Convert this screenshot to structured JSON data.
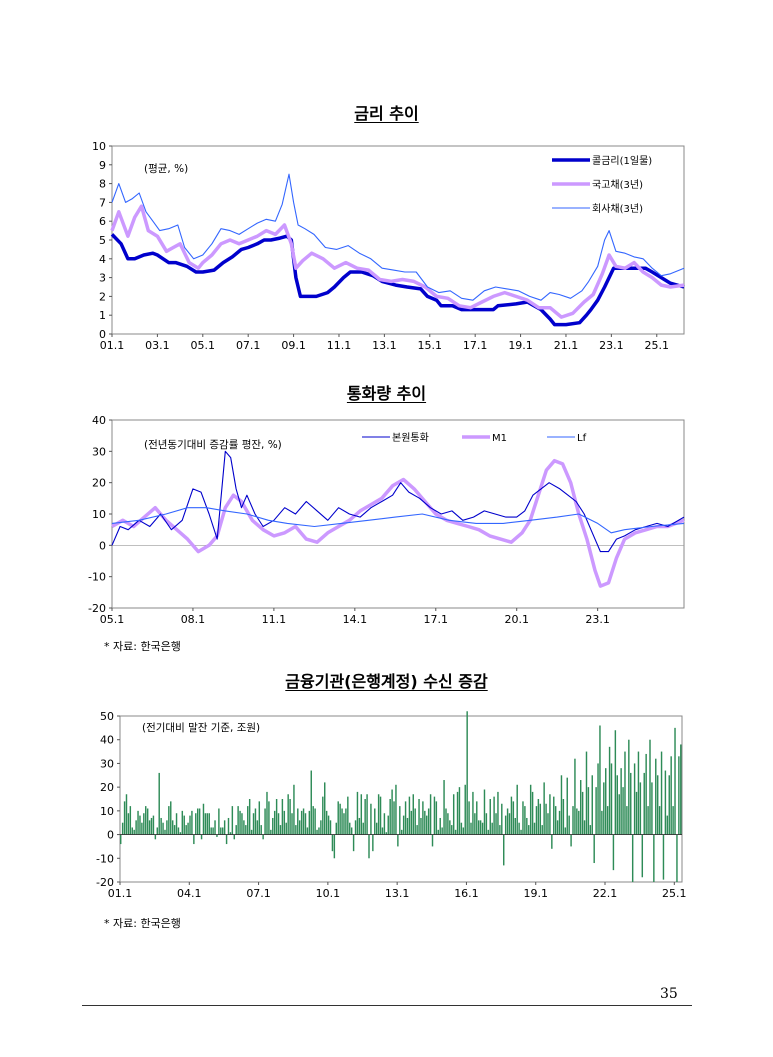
{
  "page_number": "35",
  "sections": {
    "rates": {
      "title": "금리 추이"
    },
    "money": {
      "title": "통화량 추이",
      "source": "* 자료: 한국은행"
    },
    "deposits": {
      "title": "금융기관(은행계정) 수신 증감",
      "source": "* 자료: 한국은행"
    }
  },
  "colors": {
    "navy": "#0000cc",
    "violet": "#cc99ff",
    "blue": "#3366ff",
    "green": "#2e8b57"
  },
  "chart_data": [
    {
      "id": "rates",
      "type": "line",
      "unit_note": "(평균, %)",
      "xlim": [
        2001.0,
        2026.2
      ],
      "ylim": [
        0,
        10
      ],
      "yticks": [
        0,
        1,
        2,
        3,
        4,
        5,
        6,
        7,
        8,
        9,
        10
      ],
      "xtick_labels": [
        "01.1",
        "03.1",
        "05.1",
        "07.1",
        "09.1",
        "11.1",
        "13.1",
        "15.1",
        "17.1",
        "19.1",
        "21.1",
        "23.1",
        "25.1"
      ],
      "legend_position": "top-right",
      "series": [
        {
          "name": "콜금리(1일물)",
          "color": "#0000cc",
          "width": 3.5,
          "x": [
            2001.0,
            2001.4,
            2001.7,
            2002.0,
            2002.4,
            2002.8,
            2003.0,
            2003.5,
            2003.8,
            2004.3,
            2004.7,
            2005.0,
            2005.5,
            2005.9,
            2006.3,
            2006.7,
            2007.0,
            2007.4,
            2007.7,
            2008.0,
            2008.4,
            2008.7,
            2008.9,
            2009.1,
            2009.3,
            2010.0,
            2010.5,
            2010.8,
            2011.2,
            2011.5,
            2012.0,
            2012.5,
            2012.9,
            2013.5,
            2014.0,
            2014.6,
            2014.9,
            2015.3,
            2015.5,
            2016.0,
            2016.4,
            2017.0,
            2017.8,
            2018.0,
            2018.8,
            2019.3,
            2019.6,
            2019.9,
            2020.3,
            2020.5,
            2021.0,
            2021.6,
            2021.9,
            2022.1,
            2022.4,
            2022.7,
            2022.9,
            2023.1,
            2023.5,
            2024.0,
            2024.5,
            2024.8,
            2025.2,
            2025.6,
            2026.2
          ],
          "y": [
            5.3,
            4.8,
            4.0,
            4.0,
            4.2,
            4.3,
            4.2,
            3.8,
            3.8,
            3.6,
            3.3,
            3.3,
            3.4,
            3.8,
            4.1,
            4.5,
            4.6,
            4.8,
            5.0,
            5.0,
            5.1,
            5.2,
            5.0,
            3.0,
            2.0,
            2.0,
            2.2,
            2.5,
            3.0,
            3.3,
            3.3,
            3.1,
            2.8,
            2.6,
            2.5,
            2.4,
            2.0,
            1.8,
            1.5,
            1.5,
            1.3,
            1.3,
            1.3,
            1.5,
            1.6,
            1.7,
            1.5,
            1.3,
            0.8,
            0.5,
            0.5,
            0.6,
            1.0,
            1.3,
            1.8,
            2.5,
            3.0,
            3.5,
            3.5,
            3.5,
            3.5,
            3.3,
            3.0,
            2.7,
            2.5
          ]
        },
        {
          "name": "국고채(3년)",
          "color": "#cc99ff",
          "width": 3.5,
          "x": [
            2001.0,
            2001.3,
            2001.7,
            2002.0,
            2002.3,
            2002.6,
            2003.0,
            2003.4,
            2003.7,
            2004.0,
            2004.4,
            2004.8,
            2005.0,
            2005.4,
            2005.8,
            2006.2,
            2006.6,
            2007.0,
            2007.4,
            2007.8,
            2008.2,
            2008.6,
            2008.9,
            2009.1,
            2009.4,
            2009.8,
            2010.3,
            2010.8,
            2011.3,
            2011.8,
            2012.3,
            2012.8,
            2013.3,
            2013.8,
            2014.3,
            2014.8,
            2015.3,
            2015.8,
            2016.3,
            2016.8,
            2017.3,
            2017.8,
            2018.3,
            2018.8,
            2019.3,
            2019.8,
            2020.3,
            2020.8,
            2021.3,
            2021.8,
            2022.2,
            2022.6,
            2022.9,
            2023.2,
            2023.6,
            2024.0,
            2024.4,
            2024.8,
            2025.2,
            2025.6,
            2026.2
          ],
          "y": [
            5.5,
            6.5,
            5.2,
            6.2,
            6.8,
            5.5,
            5.2,
            4.4,
            4.6,
            4.8,
            3.8,
            3.5,
            3.8,
            4.2,
            4.8,
            5.0,
            4.8,
            5.0,
            5.2,
            5.5,
            5.3,
            5.8,
            4.8,
            3.5,
            3.9,
            4.3,
            4.0,
            3.5,
            3.8,
            3.5,
            3.4,
            2.9,
            2.8,
            2.9,
            2.8,
            2.5,
            2.0,
            1.9,
            1.5,
            1.4,
            1.7,
            2.0,
            2.2,
            2.0,
            1.8,
            1.4,
            1.4,
            0.9,
            1.1,
            1.7,
            2.1,
            3.2,
            4.2,
            3.6,
            3.5,
            3.8,
            3.3,
            3.0,
            2.6,
            2.5,
            2.6
          ]
        },
        {
          "name": "회사채(3년)",
          "color": "#3366ff",
          "width": 1.1,
          "x": [
            2001.0,
            2001.3,
            2001.6,
            2001.9,
            2002.2,
            2002.5,
            2002.8,
            2003.1,
            2003.5,
            2003.9,
            2004.2,
            2004.6,
            2005.0,
            2005.4,
            2005.8,
            2006.2,
            2006.6,
            2007.0,
            2007.4,
            2007.8,
            2008.2,
            2008.5,
            2008.8,
            2009.0,
            2009.2,
            2009.5,
            2009.9,
            2010.4,
            2010.9,
            2011.4,
            2011.9,
            2012.4,
            2012.9,
            2013.4,
            2013.9,
            2014.4,
            2014.9,
            2015.4,
            2015.9,
            2016.4,
            2016.9,
            2017.4,
            2017.9,
            2018.4,
            2018.9,
            2019.4,
            2019.9,
            2020.3,
            2020.7,
            2021.2,
            2021.7,
            2022.0,
            2022.4,
            2022.7,
            2022.9,
            2023.2,
            2023.6,
            2024.0,
            2024.4,
            2024.8,
            2025.2,
            2025.6,
            2026.2
          ],
          "y": [
            7.0,
            8.0,
            7.0,
            7.2,
            7.5,
            6.5,
            6.0,
            5.5,
            5.6,
            5.8,
            4.6,
            4.0,
            4.2,
            4.8,
            5.6,
            5.5,
            5.3,
            5.6,
            5.9,
            6.1,
            6.0,
            6.9,
            8.5,
            7.0,
            5.8,
            5.6,
            5.3,
            4.6,
            4.5,
            4.7,
            4.3,
            4.0,
            3.5,
            3.4,
            3.3,
            3.3,
            2.5,
            2.2,
            2.3,
            1.9,
            1.8,
            2.3,
            2.5,
            2.4,
            2.3,
            2.0,
            1.8,
            2.2,
            2.1,
            1.9,
            2.3,
            2.8,
            3.6,
            5.0,
            5.5,
            4.4,
            4.3,
            4.1,
            4.0,
            3.5,
            3.1,
            3.2,
            3.5
          ]
        }
      ]
    },
    {
      "id": "money",
      "type": "line",
      "unit_note": "(전년동기대비 증감률 평잔, %)",
      "xlim": [
        2005.0,
        2026.2
      ],
      "ylim": [
        -20,
        40
      ],
      "yticks": [
        -20,
        -10,
        0,
        10,
        20,
        30,
        40
      ],
      "xtick_labels": [
        "05.1",
        "08.1",
        "11.1",
        "14.1",
        "17.1",
        "20.1",
        "23.1"
      ],
      "legend_position": "top",
      "series": [
        {
          "name": "본원통화",
          "color": "#0000cc",
          "width": 1.1,
          "x": [
            2005.0,
            2005.3,
            2005.6,
            2006.0,
            2006.4,
            2006.8,
            2007.2,
            2007.6,
            2008.0,
            2008.3,
            2008.6,
            2008.9,
            2009.2,
            2009.4,
            2009.6,
            2009.8,
            2010.0,
            2010.3,
            2010.6,
            2011.0,
            2011.4,
            2011.8,
            2012.2,
            2012.6,
            2013.0,
            2013.4,
            2013.8,
            2014.2,
            2014.6,
            2015.0,
            2015.4,
            2015.7,
            2016.0,
            2016.4,
            2016.8,
            2017.2,
            2017.6,
            2018.0,
            2018.4,
            2018.8,
            2019.2,
            2019.6,
            2020.0,
            2020.3,
            2020.6,
            2020.9,
            2021.2,
            2021.6,
            2021.9,
            2022.2,
            2022.5,
            2022.8,
            2023.1,
            2023.4,
            2023.7,
            2024.0,
            2024.4,
            2024.8,
            2025.2,
            2025.6,
            2026.2
          ],
          "y": [
            0,
            6,
            5,
            8,
            6,
            10,
            5,
            8,
            18,
            17,
            10,
            2,
            30,
            28,
            18,
            12,
            16,
            10,
            6,
            8,
            12,
            10,
            14,
            11,
            8,
            12,
            10,
            9,
            12,
            14,
            16,
            20,
            17,
            15,
            12,
            10,
            11,
            8,
            9,
            11,
            10,
            9,
            9,
            11,
            16,
            18,
            20,
            18,
            16,
            14,
            10,
            4,
            -2,
            -2,
            2,
            3,
            5,
            6,
            7,
            6,
            9
          ]
        },
        {
          "name": "M1",
          "color": "#cc99ff",
          "width": 3.5,
          "x": [
            2005.0,
            2005.4,
            2005.8,
            2006.2,
            2006.6,
            2007.0,
            2007.4,
            2007.8,
            2008.2,
            2008.6,
            2008.9,
            2009.2,
            2009.5,
            2009.8,
            2010.2,
            2010.6,
            2011.0,
            2011.4,
            2011.8,
            2012.2,
            2012.6,
            2013.0,
            2013.4,
            2013.8,
            2014.2,
            2014.6,
            2015.0,
            2015.4,
            2015.8,
            2016.2,
            2016.6,
            2017.0,
            2017.4,
            2017.8,
            2018.2,
            2018.6,
            2019.0,
            2019.4,
            2019.8,
            2020.2,
            2020.5,
            2020.8,
            2021.1,
            2021.4,
            2021.7,
            2022.0,
            2022.3,
            2022.6,
            2022.9,
            2023.1,
            2023.4,
            2023.7,
            2024.0,
            2024.4,
            2024.8,
            2025.2,
            2025.6,
            2026.2
          ],
          "y": [
            6,
            8,
            6,
            9,
            12,
            8,
            5,
            2,
            -2,
            0,
            3,
            12,
            16,
            14,
            8,
            5,
            3,
            4,
            6,
            2,
            1,
            4,
            6,
            8,
            11,
            13,
            15,
            19,
            21,
            18,
            14,
            10,
            8,
            7,
            6,
            5,
            3,
            2,
            1,
            4,
            8,
            16,
            24,
            27,
            26,
            20,
            10,
            2,
            -8,
            -13,
            -12,
            -4,
            2,
            4,
            5,
            6,
            6,
            8
          ]
        },
        {
          "name": "Lf",
          "color": "#3366ff",
          "width": 1.1,
          "x": [
            2005.0,
            2006.0,
            2007.0,
            2007.8,
            2008.5,
            2009.2,
            2010.0,
            2010.8,
            2011.5,
            2012.5,
            2013.5,
            2014.5,
            2015.5,
            2016.5,
            2017.5,
            2018.5,
            2019.5,
            2020.5,
            2021.5,
            2022.3,
            2023.0,
            2023.5,
            2024.0,
            2025.0,
            2026.2
          ],
          "y": [
            7,
            8,
            10,
            12,
            12,
            11,
            10,
            8,
            7,
            6,
            7,
            8,
            9,
            10,
            8,
            7,
            7,
            8,
            9,
            10,
            7,
            4,
            5,
            6,
            7
          ]
        }
      ]
    },
    {
      "id": "deposits",
      "type": "bar",
      "unit_note": "(전기대비 말잔 기준, 조원)",
      "ylim": [
        -20,
        50
      ],
      "yticks": [
        -20,
        -10,
        0,
        10,
        20,
        30,
        40,
        50
      ],
      "xtick_labels": [
        "01.1",
        "04.1",
        "07.1",
        "10.1",
        "13.1",
        "16.1",
        "19.1",
        "22.1",
        "25.1"
      ],
      "start_month": "01.1",
      "color": "#2e8b57",
      "values": [
        -4,
        5,
        14,
        17,
        9,
        12,
        3,
        2,
        6,
        10,
        8,
        5,
        9,
        12,
        11,
        6,
        7,
        8,
        -2,
        3,
        26,
        7,
        5,
        2,
        6,
        12,
        14,
        6,
        4,
        9,
        3,
        1,
        10,
        8,
        4,
        5,
        8,
        10,
        -4,
        9,
        11,
        11,
        -2,
        13,
        9,
        9,
        9,
        3,
        3,
        6,
        -1,
        11,
        3,
        3,
        6,
        -4,
        7,
        1,
        12,
        -2,
        4,
        12,
        10,
        9,
        6,
        4,
        12,
        15,
        2,
        9,
        11,
        6,
        14,
        4,
        -2,
        11,
        18,
        14,
        2,
        7,
        10,
        15,
        9,
        4,
        15,
        10,
        5,
        17,
        15,
        9,
        21,
        4,
        11,
        6,
        10,
        11,
        9,
        3,
        10,
        27,
        12,
        11,
        2,
        3,
        6,
        16,
        22,
        10,
        8,
        6,
        -7,
        -10,
        5,
        14,
        13,
        11,
        9,
        11,
        16,
        5,
        3,
        -7,
        6,
        18,
        7,
        17,
        5,
        15,
        17,
        -10,
        13,
        -7,
        11,
        5,
        17,
        16,
        3,
        9,
        1,
        8,
        15,
        19,
        14,
        21,
        -5,
        12,
        2,
        8,
        14,
        7,
        16,
        10,
        17,
        11,
        4,
        15,
        7,
        14,
        10,
        8,
        11,
        17,
        -5,
        16,
        14,
        2,
        7,
        3,
        23,
        11,
        9,
        6,
        4,
        17,
        2,
        18,
        20,
        5,
        3,
        21,
        52,
        14,
        5,
        18,
        9,
        14,
        6,
        6,
        5,
        19,
        9,
        2,
        15,
        5,
        16,
        9,
        18,
        4,
        13,
        -13,
        8,
        11,
        9,
        16,
        14,
        7,
        21,
        5,
        2,
        14,
        12,
        7,
        4,
        21,
        18,
        5,
        12,
        15,
        13,
        4,
        22,
        13,
        9,
        17,
        -6,
        16,
        12,
        6,
        10,
        25,
        15,
        3,
        24,
        8,
        -5,
        12,
        32,
        11,
        10,
        23,
        18,
        6,
        35,
        20,
        4,
        25,
        -12,
        20,
        30,
        46,
        10,
        22,
        28,
        12,
        37,
        30,
        -15,
        44,
        25,
        17,
        28,
        20,
        35,
        12,
        40,
        26,
        -20,
        30,
        18,
        35,
        22,
        -18,
        26,
        34,
        12,
        40,
        22,
        -20,
        32,
        25,
        12,
        35,
        -19,
        27,
        8,
        25,
        33,
        12,
        45,
        -20,
        33,
        38
      ]
    }
  ]
}
